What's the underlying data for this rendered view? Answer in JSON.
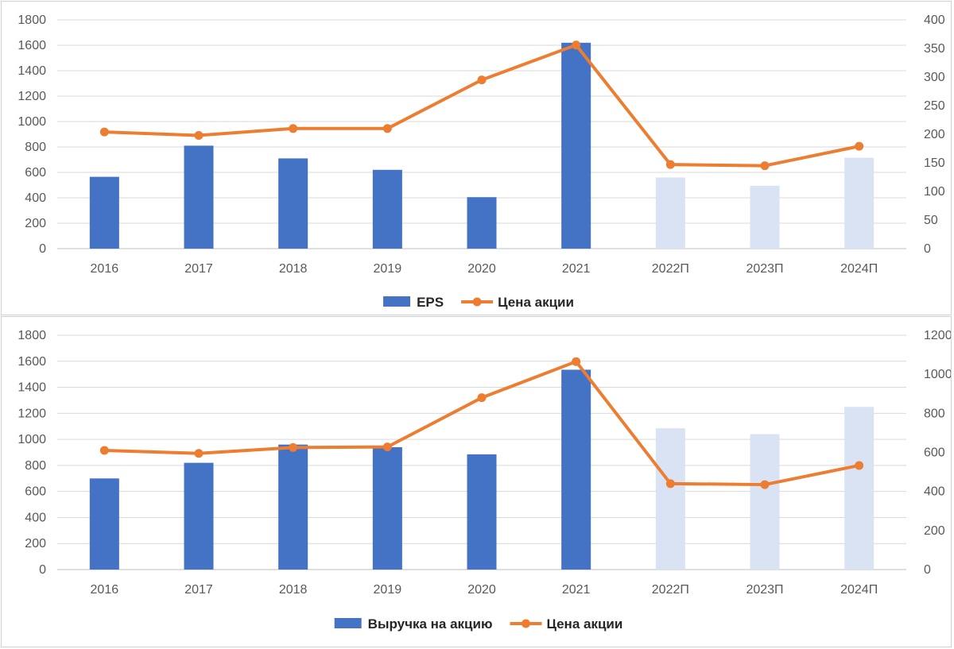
{
  "chart_data": [
    {
      "type": "bar+line",
      "categories": [
        "2016",
        "2017",
        "2018",
        "2019",
        "2020",
        "2021",
        "2022П",
        "2023П",
        "2024П"
      ],
      "series": [
        {
          "name": "EPS",
          "type": "bar",
          "axis": "left",
          "values": [
            565,
            810,
            710,
            620,
            405,
            1620,
            560,
            495,
            715
          ],
          "forecast_from_index": 6
        },
        {
          "name": "Цена акции",
          "type": "line",
          "axis": "right",
          "values": [
            204,
            198,
            210,
            210,
            295,
            356,
            147,
            145,
            179
          ]
        }
      ],
      "ylim": [
        0,
        1800
      ],
      "yticks": [
        0,
        200,
        400,
        600,
        800,
        1000,
        1200,
        1400,
        1600,
        1800
      ],
      "y2lim": [
        0,
        400
      ],
      "y2ticks": [
        0,
        50,
        100,
        150,
        200,
        250,
        300,
        350,
        400
      ],
      "grid": true,
      "legend": "bottom-center",
      "colors": {
        "bar": "#4472C4",
        "bar_forecast": "#DAE3F3",
        "line": "#ED7D31"
      }
    },
    {
      "type": "bar+line",
      "categories": [
        "2016",
        "2017",
        "2018",
        "2019",
        "2020",
        "2021",
        "2022П",
        "2023П",
        "2024П"
      ],
      "series": [
        {
          "name": "Выручка на акцию",
          "type": "bar",
          "axis": "left",
          "values": [
            700,
            820,
            960,
            940,
            885,
            1535,
            1085,
            1040,
            1250
          ],
          "forecast_from_index": 6
        },
        {
          "name": "Цена акции",
          "type": "line",
          "axis": "right",
          "values": [
            610,
            595,
            625,
            628,
            880,
            1065,
            440,
            435,
            533
          ]
        }
      ],
      "ylim": [
        0,
        1800
      ],
      "yticks": [
        0,
        200,
        400,
        600,
        800,
        1000,
        1200,
        1400,
        1600,
        1800
      ],
      "y2lim": [
        0,
        1200
      ],
      "y2ticks": [
        0,
        200,
        400,
        600,
        800,
        1000,
        1200
      ],
      "grid": true,
      "legend": "bottom-center",
      "colors": {
        "bar": "#4472C4",
        "bar_forecast": "#DAE3F3",
        "line": "#ED7D31"
      }
    }
  ]
}
